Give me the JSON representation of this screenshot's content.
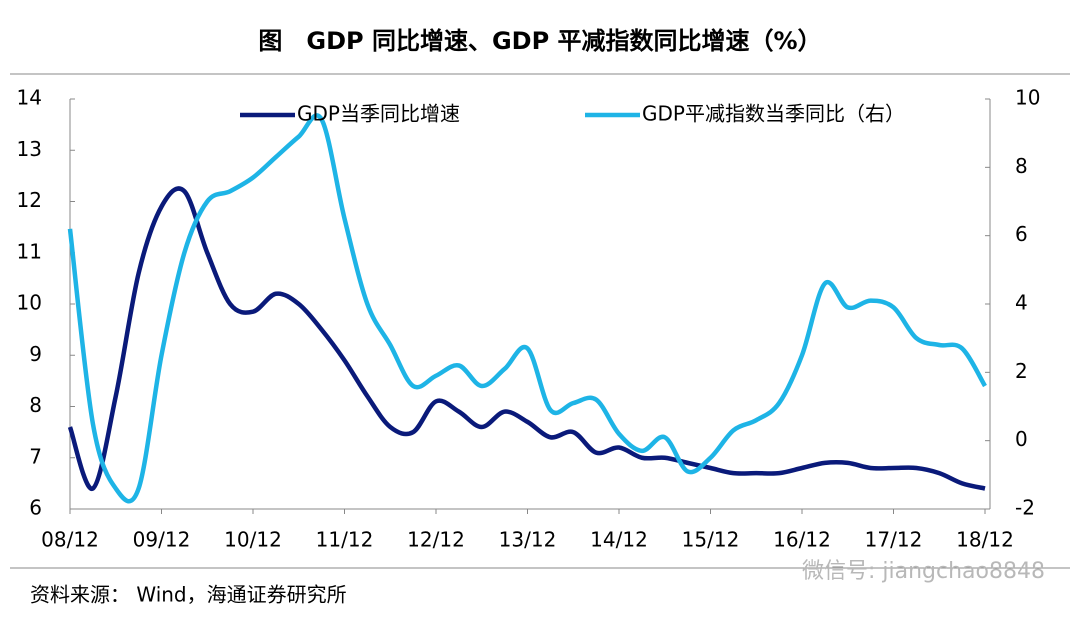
{
  "chart_data": {
    "type": "line",
    "title": "图　GDP 同比增速、GDP 平减指数同比增速（%）",
    "source": "资料来源： Wind，海通证券研究所",
    "watermark": "微信号: jiangchao8848",
    "categories": [
      "08/12",
      null,
      null,
      null,
      "09/12",
      null,
      null,
      null,
      "10/12",
      null,
      null,
      null,
      "11/12",
      null,
      null,
      null,
      "12/12",
      null,
      null,
      null,
      "13/12",
      null,
      null,
      null,
      "14/12",
      null,
      null,
      null,
      "15/12",
      null,
      null,
      null,
      "16/12",
      null,
      null,
      null,
      "17/12",
      null,
      null,
      null,
      "18/12"
    ],
    "series": [
      {
        "name": "GDP当季同比增速",
        "color": "#0a1a7a",
        "axis": "y",
        "values": [
          7.6,
          6.4,
          8.2,
          10.6,
          11.9,
          12.2,
          11.0,
          10.0,
          9.85,
          10.2,
          10.0,
          9.5,
          8.9,
          8.2,
          7.6,
          7.5,
          8.1,
          7.9,
          7.6,
          7.9,
          7.7,
          7.4,
          7.5,
          7.1,
          7.2,
          7.0,
          7.0,
          6.9,
          6.8,
          6.7,
          6.7,
          6.7,
          6.8,
          6.9,
          6.9,
          6.8,
          6.8,
          6.8,
          6.7,
          6.5,
          6.4
        ]
      },
      {
        "name": "GDP平减指数当季同比（右）",
        "color": "#1eb4e6",
        "axis": "y2",
        "values": [
          6.2,
          0.5,
          -1.4,
          -1.4,
          2.5,
          5.5,
          7.0,
          7.3,
          7.7,
          8.3,
          8.9,
          9.4,
          6.5,
          4.0,
          2.8,
          1.6,
          1.9,
          2.2,
          1.6,
          2.1,
          2.7,
          0.9,
          1.1,
          1.2,
          0.2,
          -0.3,
          0.1,
          -0.9,
          -0.5,
          0.3,
          0.6,
          1.1,
          2.5,
          4.6,
          3.9,
          4.1,
          3.9,
          3.0,
          2.8,
          2.7,
          1.6
        ]
      }
    ],
    "ylim": [
      6,
      14
    ],
    "yticks": [
      6,
      7,
      8,
      9,
      10,
      11,
      12,
      13,
      14
    ],
    "y2lim": [
      -2,
      10
    ],
    "y2ticks": [
      -2,
      0,
      2,
      4,
      6,
      8,
      10
    ]
  }
}
